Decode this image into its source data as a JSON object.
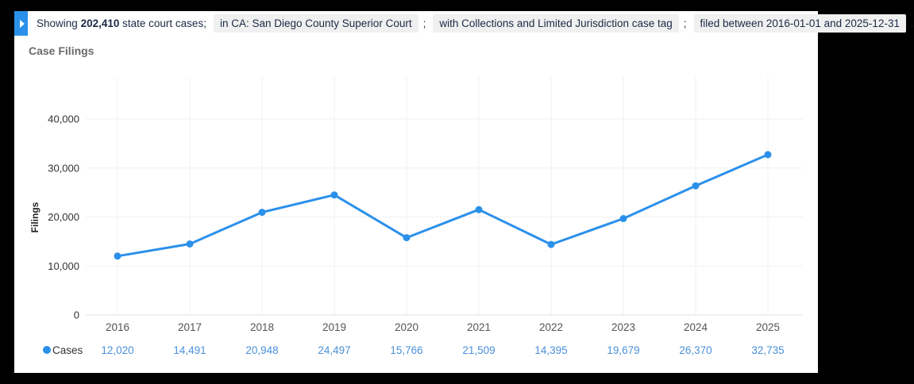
{
  "filters": {
    "prefix": "Showing",
    "count": "202,410",
    "suffix": "state court cases;",
    "chips": [
      "in CA: San Diego County Superior Court",
      "with Collections and Limited Jurisdiction case tag",
      "filed between 2016-01-01 and 2025-12-31"
    ],
    "separators": [
      ";",
      ";",
      "."
    ]
  },
  "chart_data": {
    "type": "line",
    "title": "Case Filings",
    "ylabel": "Filings",
    "series_name": "Cases",
    "categories": [
      "2016",
      "2017",
      "2018",
      "2019",
      "2020",
      "2021",
      "2022",
      "2023",
      "2024",
      "2025"
    ],
    "values": [
      12020,
      14491,
      20948,
      24497,
      15766,
      21509,
      14395,
      19679,
      26370,
      32735
    ],
    "value_labels": [
      "12,020",
      "14,491",
      "20,948",
      "24,497",
      "15,766",
      "21,509",
      "14,395",
      "19,679",
      "26,370",
      "32,735"
    ],
    "y_ticks": [
      0,
      10000,
      20000,
      30000,
      40000
    ],
    "y_tick_labels": [
      "0",
      "10,000",
      "20,000",
      "30,000",
      "40,000"
    ],
    "ylim": [
      0,
      48500
    ],
    "grid": true,
    "legend_position": "bottom-left"
  },
  "colors": {
    "accent_blue": "#2b90ea",
    "value_text_blue": "#4a91d9",
    "chip_background": "#f0f0f0",
    "grid_line": "#f1f1f1",
    "axis_line": "#e3e3e3",
    "tick_text": "#333333",
    "x_label_text": "#555555",
    "title_text": "#6a6a6a"
  }
}
